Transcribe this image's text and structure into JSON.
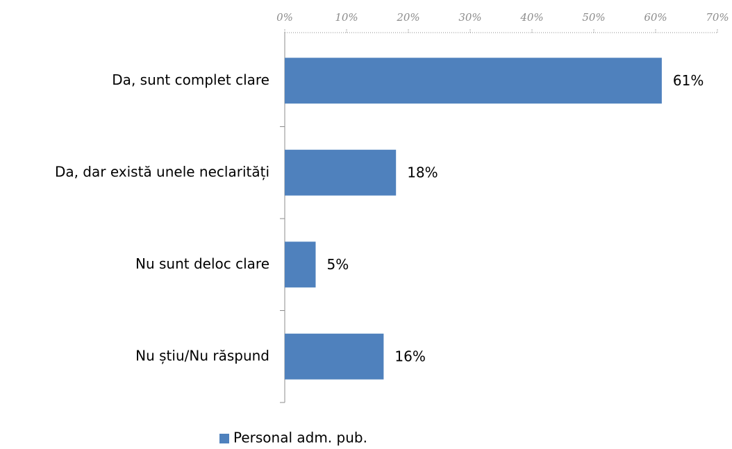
{
  "chart_data": {
    "type": "bar",
    "orientation": "horizontal",
    "categories": [
      "Da, sunt complet clare",
      "Da, dar există unele neclarități",
      "Nu sunt deloc clare",
      "Nu știu/Nu răspund"
    ],
    "series": [
      {
        "name": "Personal adm. pub.",
        "color": "#4f81bd",
        "values": [
          61,
          18,
          5,
          16
        ],
        "value_labels": [
          "61%",
          "18%",
          "5%",
          "16%"
        ]
      }
    ],
    "xlim": [
      0,
      70
    ],
    "xticks": [
      {
        "value": 0,
        "label": "0%"
      },
      {
        "value": 10,
        "label": "10%"
      },
      {
        "value": 20,
        "label": "20%"
      },
      {
        "value": 30,
        "label": "30%"
      },
      {
        "value": 40,
        "label": "40%"
      },
      {
        "value": 50,
        "label": "50%"
      },
      {
        "value": 60,
        "label": "60%"
      },
      {
        "value": 70,
        "label": "70%"
      }
    ],
    "legend": "bottom"
  }
}
